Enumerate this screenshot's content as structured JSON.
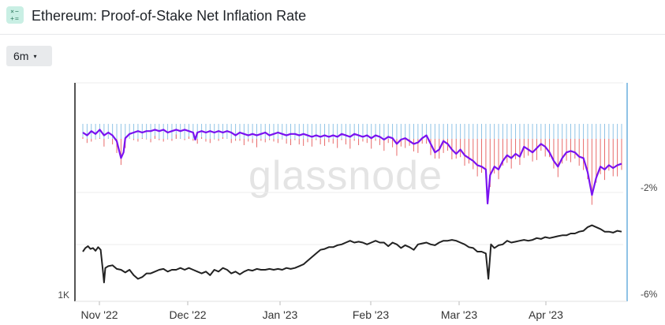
{
  "header": {
    "title": "Ethereum: Proof-of-Stake Net Inflation Rate",
    "icon": "calculator-icon"
  },
  "toolbar": {
    "range_label": "6m",
    "range_caret": "▾"
  },
  "watermark": "glassnode",
  "colors": {
    "price_line": "#222222",
    "inflation_line": "#7a12f0",
    "issuance_bars": "#8fc3e6",
    "burn_bars": "#e86a6a",
    "right_axis": "#8fc3e6"
  },
  "chart_data": {
    "type": "line",
    "x_ticks": [
      "Nov '22",
      "Dec '22",
      "Jan '23",
      "Feb '23",
      "Mar '23",
      "Apr '23"
    ],
    "left_axis_ticks": [
      "1K"
    ],
    "right_axis_ticks": [
      "-2%",
      "-6%"
    ],
    "series": [],
    "price_points": [
      [
        0,
        0.6
      ],
      [
        0.6,
        0.56
      ],
      [
        1.2,
        0.54
      ],
      [
        1.8,
        0.57
      ],
      [
        2.4,
        0.56
      ],
      [
        3.0,
        0.59
      ],
      [
        3.6,
        0.55
      ],
      [
        4.2,
        0.58
      ],
      [
        4.7,
        0.8
      ],
      [
        5.0,
        0.94
      ],
      [
        5.3,
        0.78
      ],
      [
        6.0,
        0.76
      ],
      [
        7,
        0.75
      ],
      [
        8,
        0.79
      ],
      [
        9,
        0.8
      ],
      [
        10,
        0.83
      ],
      [
        11,
        0.8
      ],
      [
        12,
        0.86
      ],
      [
        13,
        0.9
      ],
      [
        14,
        0.88
      ],
      [
        15,
        0.84
      ],
      [
        16,
        0.84
      ],
      [
        17,
        0.82
      ],
      [
        18,
        0.8
      ],
      [
        19,
        0.79
      ],
      [
        20,
        0.82
      ],
      [
        21,
        0.8
      ],
      [
        22,
        0.8
      ],
      [
        23,
        0.78
      ],
      [
        24,
        0.8
      ],
      [
        25,
        0.78
      ],
      [
        26,
        0.8
      ],
      [
        27,
        0.82
      ],
      [
        28,
        0.84
      ],
      [
        29,
        0.82
      ],
      [
        30,
        0.86
      ],
      [
        31,
        0.8
      ],
      [
        32,
        0.82
      ],
      [
        33,
        0.78
      ],
      [
        34,
        0.8
      ],
      [
        35,
        0.84
      ],
      [
        36,
        0.82
      ],
      [
        37,
        0.85
      ],
      [
        38,
        0.82
      ],
      [
        39,
        0.8
      ],
      [
        40,
        0.81
      ],
      [
        41,
        0.79
      ],
      [
        42,
        0.8
      ],
      [
        43,
        0.8
      ],
      [
        44,
        0.79
      ],
      [
        45,
        0.8
      ],
      [
        46,
        0.79
      ],
      [
        47,
        0.8
      ],
      [
        48,
        0.78
      ],
      [
        49,
        0.79
      ],
      [
        50,
        0.78
      ],
      [
        51,
        0.76
      ],
      [
        52,
        0.74
      ],
      [
        53,
        0.7
      ],
      [
        54,
        0.66
      ],
      [
        55,
        0.62
      ],
      [
        56,
        0.58
      ],
      [
        57,
        0.57
      ],
      [
        58,
        0.55
      ],
      [
        59,
        0.55
      ],
      [
        60,
        0.53
      ],
      [
        61,
        0.52
      ],
      [
        62,
        0.5
      ],
      [
        63,
        0.48
      ],
      [
        64,
        0.5
      ],
      [
        65,
        0.49
      ],
      [
        66,
        0.5
      ],
      [
        67,
        0.52
      ],
      [
        68,
        0.5
      ],
      [
        69,
        0.48
      ],
      [
        70,
        0.5
      ],
      [
        71,
        0.5
      ],
      [
        72,
        0.54
      ],
      [
        73,
        0.5
      ],
      [
        74,
        0.52
      ],
      [
        75,
        0.56
      ],
      [
        76,
        0.53
      ],
      [
        77,
        0.55
      ],
      [
        78,
        0.58
      ],
      [
        79,
        0.52
      ],
      [
        80,
        0.51
      ],
      [
        81,
        0.5
      ],
      [
        82,
        0.52
      ],
      [
        83,
        0.53
      ],
      [
        84,
        0.5
      ],
      [
        85,
        0.48
      ],
      [
        86,
        0.48
      ],
      [
        87,
        0.47
      ],
      [
        88,
        0.48
      ],
      [
        89,
        0.5
      ],
      [
        90,
        0.52
      ],
      [
        91,
        0.55
      ],
      [
        92,
        0.56
      ],
      [
        93,
        0.6
      ],
      [
        94,
        0.6
      ],
      [
        95,
        0.62
      ],
      [
        95.6,
        0.9
      ],
      [
        96.2,
        0.52
      ],
      [
        97,
        0.56
      ],
      [
        98,
        0.53
      ],
      [
        99,
        0.52
      ],
      [
        100,
        0.48
      ],
      [
        101,
        0.5
      ],
      [
        102,
        0.49
      ],
      [
        103,
        0.48
      ],
      [
        104,
        0.47
      ],
      [
        105,
        0.48
      ],
      [
        106,
        0.47
      ],
      [
        107,
        0.45
      ],
      [
        108,
        0.46
      ],
      [
        109,
        0.44
      ],
      [
        110,
        0.45
      ],
      [
        111,
        0.44
      ],
      [
        112,
        0.43
      ],
      [
        113,
        0.42
      ],
      [
        114,
        0.42
      ],
      [
        115,
        0.4
      ],
      [
        116,
        0.4
      ],
      [
        117,
        0.38
      ],
      [
        118,
        0.37
      ],
      [
        119,
        0.33
      ],
      [
        120,
        0.31
      ],
      [
        121,
        0.33
      ],
      [
        122,
        0.35
      ],
      [
        123,
        0.38
      ],
      [
        124,
        0.38
      ],
      [
        125,
        0.39
      ],
      [
        126,
        0.37
      ],
      [
        127,
        0.38
      ]
    ],
    "inflation_points": [
      [
        0,
        0.1
      ],
      [
        1,
        0.12
      ],
      [
        2,
        0.09
      ],
      [
        3,
        0.11
      ],
      [
        4,
        0.08
      ],
      [
        5,
        0.12
      ],
      [
        6,
        0.1
      ],
      [
        7,
        0.12
      ],
      [
        8,
        0.16
      ],
      [
        9,
        0.28
      ],
      [
        9.6,
        0.24
      ],
      [
        10,
        0.14
      ],
      [
        11,
        0.11
      ],
      [
        12,
        0.1
      ],
      [
        13,
        0.09
      ],
      [
        14,
        0.1
      ],
      [
        15,
        0.09
      ],
      [
        16,
        0.09
      ],
      [
        17,
        0.08
      ],
      [
        18,
        0.09
      ],
      [
        19,
        0.08
      ],
      [
        20,
        0.1
      ],
      [
        21,
        0.09
      ],
      [
        22,
        0.08
      ],
      [
        23,
        0.09
      ],
      [
        24,
        0.08
      ],
      [
        25,
        0.09
      ],
      [
        26,
        0.1
      ],
      [
        26.5,
        0.15
      ],
      [
        27,
        0.1
      ],
      [
        28,
        0.09
      ],
      [
        29,
        0.1
      ],
      [
        30,
        0.09
      ],
      [
        31,
        0.1
      ],
      [
        32,
        0.09
      ],
      [
        33,
        0.1
      ],
      [
        34,
        0.09
      ],
      [
        35,
        0.1
      ],
      [
        36,
        0.12
      ],
      [
        37,
        0.1
      ],
      [
        38,
        0.11
      ],
      [
        39,
        0.12
      ],
      [
        40,
        0.11
      ],
      [
        41,
        0.12
      ],
      [
        42,
        0.11
      ],
      [
        43,
        0.1
      ],
      [
        44,
        0.12
      ],
      [
        45,
        0.11
      ],
      [
        46,
        0.1
      ],
      [
        47,
        0.11
      ],
      [
        48,
        0.12
      ],
      [
        49,
        0.11
      ],
      [
        50,
        0.11
      ],
      [
        51,
        0.12
      ],
      [
        52,
        0.11
      ],
      [
        53,
        0.12
      ],
      [
        54,
        0.13
      ],
      [
        55,
        0.12
      ],
      [
        56,
        0.13
      ],
      [
        57,
        0.12
      ],
      [
        58,
        0.13
      ],
      [
        59,
        0.12
      ],
      [
        60,
        0.13
      ],
      [
        61,
        0.11
      ],
      [
        62,
        0.12
      ],
      [
        63,
        0.13
      ],
      [
        64,
        0.11
      ],
      [
        65,
        0.12
      ],
      [
        66,
        0.13
      ],
      [
        67,
        0.12
      ],
      [
        68,
        0.14
      ],
      [
        69,
        0.12
      ],
      [
        70,
        0.13
      ],
      [
        71,
        0.15
      ],
      [
        72,
        0.13
      ],
      [
        73,
        0.14
      ],
      [
        74,
        0.18
      ],
      [
        75,
        0.15
      ],
      [
        76,
        0.14
      ],
      [
        77,
        0.16
      ],
      [
        78,
        0.18
      ],
      [
        79,
        0.17
      ],
      [
        80,
        0.14
      ],
      [
        81,
        0.12
      ],
      [
        82,
        0.18
      ],
      [
        83,
        0.24
      ],
      [
        84,
        0.22
      ],
      [
        85,
        0.16
      ],
      [
        86,
        0.18
      ],
      [
        87,
        0.22
      ],
      [
        88,
        0.25
      ],
      [
        89,
        0.22
      ],
      [
        90,
        0.26
      ],
      [
        91,
        0.28
      ],
      [
        92,
        0.3
      ],
      [
        93,
        0.33
      ],
      [
        94,
        0.34
      ],
      [
        95,
        0.36
      ],
      [
        95.4,
        0.6
      ],
      [
        96,
        0.4
      ],
      [
        97,
        0.34
      ],
      [
        98,
        0.36
      ],
      [
        99,
        0.3
      ],
      [
        100,
        0.26
      ],
      [
        101,
        0.28
      ],
      [
        102,
        0.25
      ],
      [
        103,
        0.27
      ],
      [
        104,
        0.2
      ],
      [
        105,
        0.22
      ],
      [
        106,
        0.24
      ],
      [
        107,
        0.21
      ],
      [
        108,
        0.18
      ],
      [
        109,
        0.2
      ],
      [
        110,
        0.24
      ],
      [
        111,
        0.3
      ],
      [
        112,
        0.34
      ],
      [
        113,
        0.28
      ],
      [
        114,
        0.24
      ],
      [
        115,
        0.23
      ],
      [
        116,
        0.24
      ],
      [
        117,
        0.27
      ],
      [
        118,
        0.28
      ],
      [
        119,
        0.38
      ],
      [
        120,
        0.54
      ],
      [
        121,
        0.42
      ],
      [
        122,
        0.34
      ],
      [
        123,
        0.36
      ],
      [
        124,
        0.33
      ],
      [
        125,
        0.35
      ],
      [
        126,
        0.33
      ],
      [
        127,
        0.32
      ]
    ]
  }
}
